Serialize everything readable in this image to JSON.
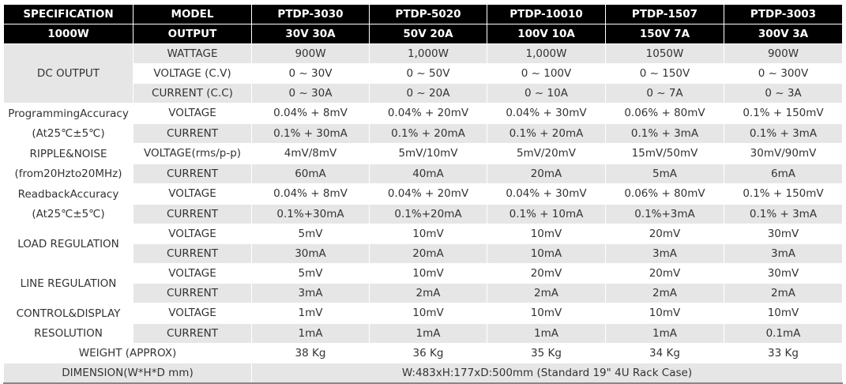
{
  "header": {
    "spec": "SPECIFICATION",
    "power": "1000W",
    "model_label": "MODEL",
    "output_label": "OUTPUT",
    "models": [
      "PTDP-3030",
      "PTDP-5020",
      "PTDP-10010",
      "PTDP-1507",
      "PTDP-3003"
    ],
    "outputs": [
      "30V 30A",
      "50V 20A",
      "100V 10A",
      "150V 7A",
      "300V 3A"
    ]
  },
  "groups": [
    {
      "label": [
        "DC OUTPUT"
      ],
      "rows": [
        {
          "param": "WATTAGE",
          "values": [
            "900W",
            "1,000W",
            "1,000W",
            "1050W",
            "900W"
          ]
        },
        {
          "param": "VOLTAGE (C.V)",
          "values": [
            "0 ~ 30V",
            "0 ~ 50V",
            "0 ~ 100V",
            "0 ~ 150V",
            "0 ~ 300V"
          ]
        },
        {
          "param": "CURRENT (C.C)",
          "values": [
            "0 ~ 30A",
            "0 ~ 20A",
            "0 ~ 10A",
            "0 ~ 7A",
            "0 ~ 3A"
          ]
        }
      ]
    },
    {
      "label": [
        "ProgrammingAccuracy",
        "(At25℃±5℃)"
      ],
      "rows": [
        {
          "param": "VOLTAGE",
          "values": [
            "0.04% + 8mV",
            "0.04% + 20mV",
            "0.04% + 30mV",
            "0.06% + 80mV",
            "0.1% + 150mV"
          ]
        },
        {
          "param": "CURRENT",
          "values": [
            "0.1% + 30mA",
            "0.1% + 20mA",
            "0.1% + 20mA",
            "0.1% + 3mA",
            "0.1% + 3mA"
          ]
        }
      ]
    },
    {
      "label": [
        "RIPPLE&NOISE",
        "(from20Hzto20MHz)"
      ],
      "rows": [
        {
          "param": "VOLTAGE(rms/p-p)",
          "values": [
            "4mV/8mV",
            "5mV/10mV",
            "5mV/20mV",
            "15mV/50mV",
            "30mV/90mV"
          ]
        },
        {
          "param": "CURRENT",
          "values": [
            "60mA",
            "40mA",
            "20mA",
            "5mA",
            "6mA"
          ]
        }
      ]
    },
    {
      "label": [
        "ReadbackAccuracy",
        "(At25℃±5℃)"
      ],
      "rows": [
        {
          "param": "VOLTAGE",
          "values": [
            "0.04% + 8mV",
            "0.04% + 20mV",
            "0.04% + 30mV",
            "0.06% + 80mV",
            "0.1% + 150mV"
          ]
        },
        {
          "param": "CURRENT",
          "values": [
            "0.1%+30mA",
            "0.1%+20mA",
            "0.1% + 10mA",
            "0.1%+3mA",
            "0.1% + 3mA"
          ]
        }
      ]
    },
    {
      "label": [
        "LOAD REGULATION"
      ],
      "rows": [
        {
          "param": "VOLTAGE",
          "values": [
            "5mV",
            "10mV",
            "10mV",
            "20mV",
            "30mV"
          ]
        },
        {
          "param": "CURRENT",
          "values": [
            "30mA",
            "20mA",
            "10mA",
            "3mA",
            "3mA"
          ]
        }
      ]
    },
    {
      "label": [
        "LINE REGULATION"
      ],
      "rows": [
        {
          "param": "VOLTAGE",
          "values": [
            "5mV",
            "10mV",
            "20mV",
            "20mV",
            "30mV"
          ]
        },
        {
          "param": "CURRENT",
          "values": [
            "3mA",
            "2mA",
            "2mA",
            "2mA",
            "2mA"
          ]
        }
      ]
    },
    {
      "label": [
        "CONTROL&DISPLAY",
        "RESOLUTION"
      ],
      "rows": [
        {
          "param": "VOLTAGE",
          "values": [
            "1mV",
            "10mV",
            "10mV",
            "10mV",
            "10mV"
          ]
        },
        {
          "param": "CURRENT",
          "values": [
            "1mA",
            "1mA",
            "1mA",
            "1mA",
            "0.1mA"
          ]
        }
      ]
    }
  ],
  "weight": {
    "label": "WEIGHT (APPROX)",
    "values": [
      "38 Kg",
      "36 Kg",
      "35 Kg",
      "34 Kg",
      "33 Kg"
    ]
  },
  "dimension": {
    "label": "DIMENSION(W*H*D mm)",
    "value": "W:483xH:177xD:500mm (Standard 19\" 4U Rack Case)"
  }
}
